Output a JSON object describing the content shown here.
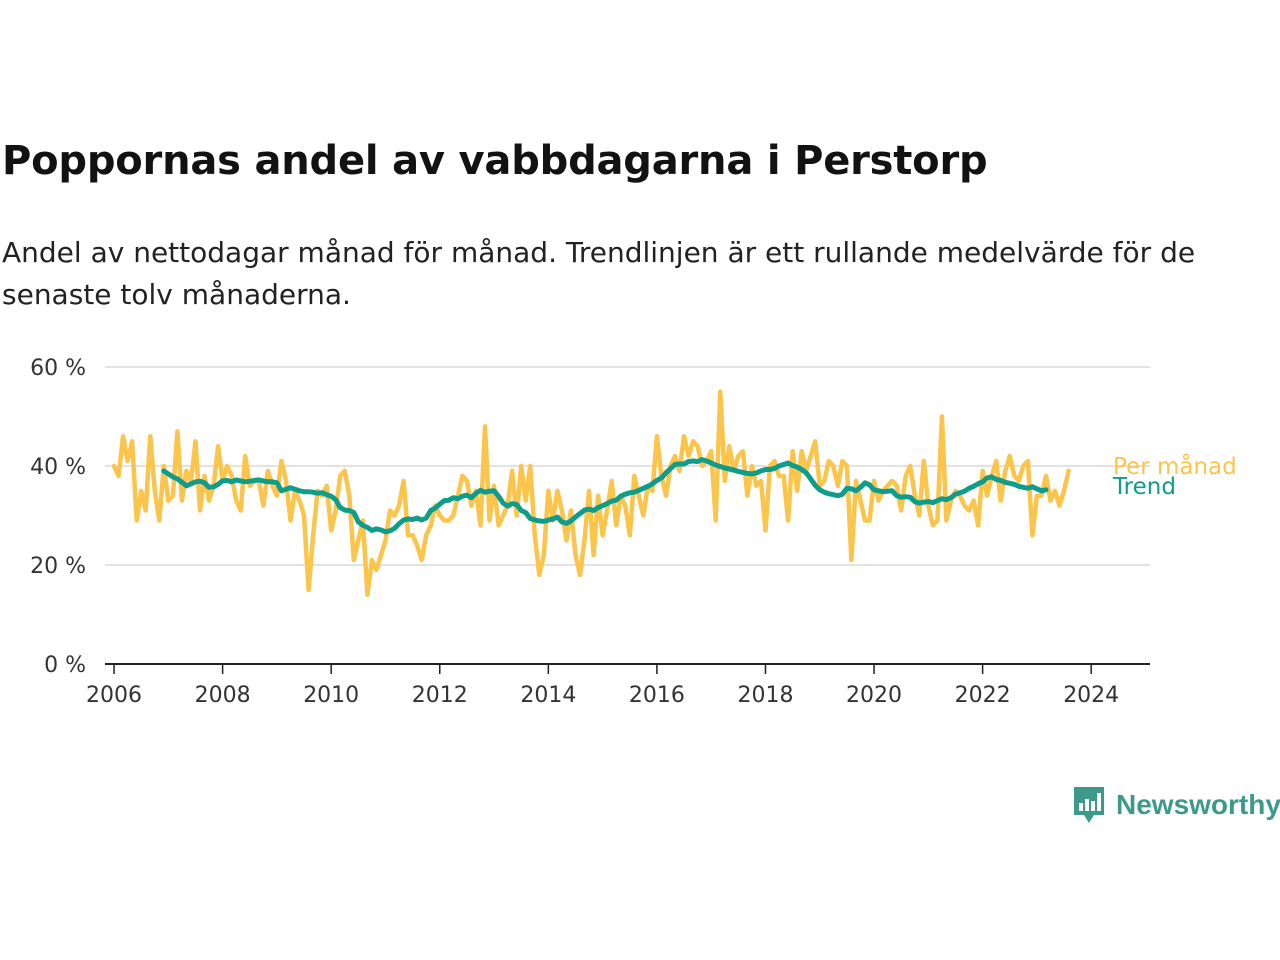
{
  "header": {
    "title": "Poppornas andel av vabbdagarna i Perstorp",
    "subtitle": "Andel av nettodagar månad för månad. Trendlinjen är ett rullande medelvärde för de senaste tolv månaderna."
  },
  "brand": {
    "name": "Newsworthy",
    "color": "#3d9a8b"
  },
  "colors": {
    "monthly": "#fbc44b",
    "trend": "#0f9c8a",
    "grid": "#d9d9d9",
    "axis": "#222222"
  },
  "chart_data": {
    "type": "line",
    "xlabel": "",
    "ylabel": "",
    "x_ticks": [
      "2006",
      "2008",
      "2010",
      "2012",
      "2014",
      "2016",
      "2018",
      "2020",
      "2022",
      "2024"
    ],
    "y_ticks": [
      "0 %",
      "20 %",
      "40 %",
      "60 %"
    ],
    "ylim": [
      0,
      60
    ],
    "xlim": [
      "2005-11",
      "2025-02"
    ],
    "grid": true,
    "legend": "inline-right",
    "series": [
      {
        "name": "Per månad",
        "x_start": "2006-01",
        "frequency": "monthly",
        "values": [
          40,
          38,
          46,
          41,
          45,
          29,
          35,
          31,
          46,
          35,
          29,
          40,
          33,
          34,
          47,
          33,
          39,
          37,
          45,
          31,
          38,
          33,
          36,
          44,
          37,
          40,
          38,
          33,
          31,
          42,
          36,
          37,
          37,
          32,
          39,
          36,
          34,
          41,
          37,
          29,
          35,
          33,
          30,
          15,
          26,
          35,
          34,
          36,
          27,
          31,
          38,
          39,
          34,
          21,
          25,
          29,
          14,
          21,
          19,
          22,
          25,
          31,
          30,
          32,
          37,
          26,
          26,
          24,
          21,
          26,
          28,
          32,
          30,
          29,
          29,
          30,
          34,
          38,
          37,
          32,
          35,
          28,
          48,
          29,
          36,
          28,
          30,
          32,
          39,
          30,
          40,
          33,
          40,
          26,
          18,
          22,
          35,
          29,
          35,
          31,
          25,
          31,
          22,
          18,
          25,
          35,
          22,
          34,
          26,
          31,
          37,
          28,
          34,
          32,
          26,
          38,
          34,
          30,
          36,
          35,
          46,
          38,
          34,
          40,
          42,
          39,
          46,
          42,
          45,
          44,
          40,
          41,
          43,
          29,
          55,
          37,
          44,
          39,
          42,
          43,
          34,
          40,
          36,
          37,
          27,
          40,
          41,
          38,
          38,
          29,
          43,
          35,
          43,
          39,
          42,
          45,
          36,
          37,
          41,
          40,
          36,
          41,
          40,
          21,
          37,
          33,
          29,
          29,
          37,
          33,
          35,
          36,
          37,
          36,
          31,
          38,
          40,
          34,
          30,
          41,
          32,
          28,
          29,
          50,
          29,
          33,
          35,
          34,
          32,
          31,
          33,
          28,
          39,
          34,
          38,
          41,
          33,
          39,
          42,
          38,
          37,
          40,
          41,
          26,
          34,
          34,
          38,
          33,
          35,
          32,
          35,
          39
        ]
      },
      {
        "name": "Trend",
        "x_start": "2006-12",
        "frequency": "monthly",
        "values": [
          39.0,
          38.4,
          37.8,
          37.4,
          36.7,
          36.0,
          36.4,
          36.8,
          36.9,
          36.6,
          35.7,
          35.8,
          36.3,
          37.0,
          37.1,
          36.8,
          37.2,
          37.0,
          36.8,
          36.9,
          37.1,
          37.2,
          37.0,
          36.8,
          36.8,
          36.6,
          35.0,
          35.3,
          35.6,
          35.3,
          35.0,
          34.8,
          34.8,
          34.7,
          34.5,
          34.6,
          34.2,
          33.9,
          33.2,
          31.6,
          31.1,
          31.0,
          30.6,
          28.7,
          28.0,
          27.6,
          27.0,
          27.3,
          27.1,
          26.7,
          26.9,
          27.4,
          28.3,
          29.1,
          29.3,
          29.2,
          29.5,
          29.1,
          29.5,
          31.0,
          31.5,
          32.3,
          33.0,
          33.1,
          33.6,
          33.4,
          33.9,
          34.1,
          33.6,
          34.5,
          35.1,
          34.7,
          34.9,
          35.0,
          33.9,
          32.5,
          31.9,
          32.4,
          32.2,
          31.0,
          30.6,
          29.4,
          29.1,
          28.9,
          28.8,
          29.1,
          29.3,
          29.7,
          28.7,
          28.4,
          28.9,
          29.7,
          30.4,
          31.1,
          31.3,
          31.0,
          31.6,
          32.0,
          32.4,
          32.9,
          33.1,
          33.9,
          34.3,
          34.6,
          34.7,
          35.1,
          35.5,
          35.9,
          36.4,
          37.1,
          37.6,
          38.6,
          39.5,
          40.3,
          40.4,
          40.4,
          40.9,
          41.0,
          40.9,
          41.3,
          41.0,
          40.6,
          40.2,
          39.9,
          39.6,
          39.4,
          39.2,
          38.9,
          38.7,
          38.5,
          38.4,
          38.6,
          39.0,
          39.3,
          39.3,
          39.5,
          40.0,
          40.3,
          40.6,
          40.1,
          39.8,
          39.3,
          38.6,
          37.4,
          36.1,
          35.2,
          34.7,
          34.4,
          34.2,
          34.0,
          34.3,
          35.5,
          35.4,
          35.0,
          35.7,
          36.6,
          36.2,
          35.2,
          35.0,
          34.8,
          34.9,
          35.0,
          34.0,
          33.7,
          33.8,
          33.7,
          32.8,
          32.5,
          32.7,
          32.8,
          32.6,
          33.0,
          33.4,
          33.2,
          33.6,
          34.3,
          34.6,
          34.9,
          35.5,
          35.9,
          36.4,
          36.8,
          37.6,
          37.8,
          37.3,
          37.1,
          36.7,
          36.5,
          36.3,
          35.9,
          35.7,
          35.5,
          35.8,
          35.4,
          35.0,
          35.2
        ]
      }
    ],
    "series_labels": [
      "Per månad",
      "Trend"
    ]
  }
}
